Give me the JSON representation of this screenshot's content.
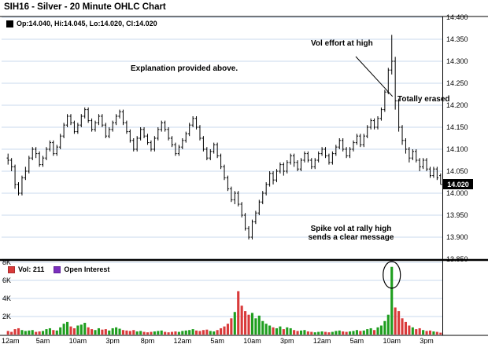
{
  "header": {
    "title": "SIH16 - Silver - 20 Minute OHLC Chart"
  },
  "ohlc_legend": {
    "swatch_color": "#000000",
    "label": "Op:14.040, Hi:14.045, Lo:14.020, Cl:14.020"
  },
  "volume_legend": {
    "vol_color": "#d93a3a",
    "vol_label": "Vol: 211",
    "oi_color": "#7b2fbe",
    "oi_label": "Open Interest"
  },
  "annotations": {
    "explanation": "Explanation provided above.",
    "vol_effort": "Vol effort at high",
    "totally_erased": "Totally erased",
    "spike_line1": "Spike vol at rally high",
    "spike_line2": "sends a clear message"
  },
  "price_tag": {
    "value": "14.020"
  },
  "chart_data": {
    "type": "ohlc+volume-bar",
    "title": "SIH16 - Silver - 20 Minute OHLC Chart",
    "legend_position": "top-left",
    "grid": true,
    "price_axis": {
      "side": "right",
      "min": 13.85,
      "max": 14.4,
      "tick_labels": [
        "14.400",
        "14.350",
        "14.300",
        "14.250",
        "14.200",
        "14.150",
        "14.100",
        "14.050",
        "14.000",
        "13.950",
        "13.900",
        "13.850"
      ],
      "last_price_label": "14.020"
    },
    "volume_axis": {
      "side": "left",
      "min": 0,
      "max": 8000,
      "tick_labels": [
        "8K",
        "6K",
        "4K",
        "2K"
      ]
    },
    "time_labels": [
      "12am",
      "5am",
      "10am",
      "3pm",
      "8pm",
      "12am",
      "5am",
      "10am",
      "3pm",
      "12am",
      "5am",
      "10am",
      "3pm"
    ],
    "bars_per_label": 10,
    "colors": {
      "bar": "#000000",
      "grid": "#c9d8ec",
      "vol_up": "#1f9e1f",
      "vol_down": "#d93a3a",
      "open_interest": "#7b2fbe",
      "axis": "#000000"
    },
    "bars_format": [
      "open",
      "high",
      "low",
      "close",
      "volume"
    ],
    "bars": [
      [
        14.08,
        14.09,
        14.065,
        14.075,
        400
      ],
      [
        14.075,
        14.08,
        14.05,
        14.06,
        300
      ],
      [
        14.06,
        14.065,
        14.01,
        14.02,
        600
      ],
      [
        14.02,
        14.025,
        13.995,
        14.0,
        700
      ],
      [
        14.0,
        14.04,
        13.995,
        14.035,
        500
      ],
      [
        14.035,
        14.06,
        14.03,
        14.05,
        400
      ],
      [
        14.05,
        14.085,
        14.045,
        14.08,
        450
      ],
      [
        14.08,
        14.105,
        14.075,
        14.1,
        500
      ],
      [
        14.1,
        14.105,
        14.08,
        14.09,
        300
      ],
      [
        14.09,
        14.095,
        14.06,
        14.065,
        350
      ],
      [
        14.065,
        14.085,
        14.06,
        14.08,
        400
      ],
      [
        14.08,
        14.105,
        14.075,
        14.1,
        600
      ],
      [
        14.1,
        14.12,
        14.095,
        14.115,
        700
      ],
      [
        14.115,
        14.12,
        14.085,
        14.09,
        500
      ],
      [
        14.09,
        14.11,
        14.085,
        14.105,
        450
      ],
      [
        14.105,
        14.135,
        14.1,
        14.13,
        800
      ],
      [
        14.13,
        14.16,
        14.125,
        14.155,
        1200
      ],
      [
        14.155,
        14.18,
        14.15,
        14.175,
        1400
      ],
      [
        14.175,
        14.18,
        14.155,
        14.16,
        900
      ],
      [
        14.16,
        14.165,
        14.135,
        14.14,
        700
      ],
      [
        14.14,
        14.16,
        14.135,
        14.155,
        1000
      ],
      [
        14.155,
        14.18,
        14.15,
        14.175,
        1100
      ],
      [
        14.175,
        14.195,
        14.17,
        14.19,
        1300
      ],
      [
        14.19,
        14.195,
        14.16,
        14.165,
        800
      ],
      [
        14.165,
        14.17,
        14.14,
        14.145,
        600
      ],
      [
        14.145,
        14.165,
        14.14,
        14.16,
        500
      ],
      [
        14.16,
        14.18,
        14.155,
        14.175,
        700
      ],
      [
        14.175,
        14.18,
        14.15,
        14.155,
        550
      ],
      [
        14.155,
        14.16,
        14.125,
        14.13,
        600
      ],
      [
        14.13,
        14.15,
        14.125,
        14.145,
        450
      ],
      [
        14.145,
        14.165,
        14.14,
        14.16,
        700
      ],
      [
        14.16,
        14.18,
        14.155,
        14.175,
        800
      ],
      [
        14.175,
        14.19,
        14.17,
        14.185,
        650
      ],
      [
        14.185,
        14.19,
        14.155,
        14.16,
        500
      ],
      [
        14.16,
        14.165,
        14.135,
        14.14,
        450
      ],
      [
        14.14,
        14.145,
        14.115,
        14.12,
        400
      ],
      [
        14.12,
        14.125,
        14.095,
        14.1,
        500
      ],
      [
        14.1,
        14.13,
        14.095,
        14.125,
        350
      ],
      [
        14.125,
        14.15,
        14.12,
        14.145,
        400
      ],
      [
        14.145,
        14.15,
        14.125,
        14.13,
        300
      ],
      [
        14.13,
        14.135,
        14.11,
        14.115,
        250
      ],
      [
        14.115,
        14.12,
        14.095,
        14.1,
        300
      ],
      [
        14.1,
        14.13,
        14.095,
        14.125,
        350
      ],
      [
        14.125,
        14.15,
        14.12,
        14.145,
        400
      ],
      [
        14.145,
        14.165,
        14.14,
        14.16,
        450
      ],
      [
        14.16,
        14.165,
        14.14,
        14.145,
        300
      ],
      [
        14.145,
        14.15,
        14.12,
        14.125,
        250
      ],
      [
        14.125,
        14.13,
        14.105,
        14.11,
        300
      ],
      [
        14.11,
        14.115,
        14.085,
        14.09,
        350
      ],
      [
        14.09,
        14.11,
        14.085,
        14.105,
        300
      ],
      [
        14.105,
        14.125,
        14.1,
        14.12,
        400
      ],
      [
        14.12,
        14.14,
        14.115,
        14.135,
        450
      ],
      [
        14.135,
        14.16,
        14.13,
        14.155,
        500
      ],
      [
        14.155,
        14.175,
        14.15,
        14.17,
        600
      ],
      [
        14.17,
        14.175,
        14.145,
        14.15,
        450
      ],
      [
        14.15,
        14.155,
        14.12,
        14.125,
        400
      ],
      [
        14.125,
        14.13,
        14.095,
        14.1,
        500
      ],
      [
        14.1,
        14.105,
        14.075,
        14.08,
        550
      ],
      [
        14.08,
        14.1,
        14.075,
        14.095,
        400
      ],
      [
        14.095,
        14.115,
        14.09,
        14.11,
        350
      ],
      [
        14.11,
        14.115,
        14.08,
        14.085,
        500
      ],
      [
        14.085,
        14.09,
        14.055,
        14.06,
        700
      ],
      [
        14.06,
        14.065,
        14.03,
        14.035,
        900
      ],
      [
        14.035,
        14.04,
        14.005,
        14.01,
        1200
      ],
      [
        14.01,
        14.015,
        13.98,
        13.985,
        1800
      ],
      [
        13.985,
        14.005,
        13.975,
        14.0,
        2500
      ],
      [
        14.0,
        14.005,
        13.97,
        13.975,
        4800
      ],
      [
        13.975,
        13.98,
        13.945,
        13.95,
        3200
      ],
      [
        13.95,
        13.955,
        13.915,
        13.92,
        2600
      ],
      [
        13.92,
        13.925,
        13.895,
        13.9,
        2200
      ],
      [
        13.9,
        13.94,
        13.895,
        13.935,
        2400
      ],
      [
        13.935,
        13.96,
        13.93,
        13.955,
        1800
      ],
      [
        13.955,
        13.985,
        13.95,
        13.98,
        2100
      ],
      [
        13.98,
        14.005,
        13.975,
        14.0,
        1500
      ],
      [
        14.0,
        14.025,
        13.995,
        14.02,
        1200
      ],
      [
        14.02,
        14.05,
        14.015,
        14.045,
        1000
      ],
      [
        14.045,
        14.05,
        14.02,
        14.03,
        800
      ],
      [
        14.03,
        14.055,
        14.025,
        14.05,
        700
      ],
      [
        14.05,
        14.07,
        14.045,
        14.065,
        900
      ],
      [
        14.065,
        14.07,
        14.04,
        14.05,
        600
      ],
      [
        14.05,
        14.075,
        14.045,
        14.07,
        800
      ],
      [
        14.07,
        14.09,
        14.065,
        14.085,
        700
      ],
      [
        14.085,
        14.09,
        14.06,
        14.07,
        500
      ],
      [
        14.07,
        14.075,
        14.05,
        14.055,
        400
      ],
      [
        14.055,
        14.08,
        14.05,
        14.075,
        450
      ],
      [
        14.075,
        14.095,
        14.07,
        14.09,
        500
      ],
      [
        14.09,
        14.095,
        14.07,
        14.075,
        350
      ],
      [
        14.075,
        14.08,
        14.055,
        14.06,
        300
      ],
      [
        14.06,
        14.08,
        14.055,
        14.075,
        250
      ],
      [
        14.075,
        14.095,
        14.07,
        14.09,
        300
      ],
      [
        14.09,
        14.105,
        14.085,
        14.1,
        350
      ],
      [
        14.1,
        14.105,
        14.08,
        14.085,
        300
      ],
      [
        14.085,
        14.09,
        14.065,
        14.07,
        250
      ],
      [
        14.07,
        14.095,
        14.065,
        14.09,
        300
      ],
      [
        14.09,
        14.11,
        14.085,
        14.105,
        400
      ],
      [
        14.105,
        14.125,
        14.1,
        14.12,
        450
      ],
      [
        14.12,
        14.125,
        14.095,
        14.1,
        350
      ],
      [
        14.1,
        14.105,
        14.08,
        14.085,
        300
      ],
      [
        14.085,
        14.105,
        14.08,
        14.1,
        350
      ],
      [
        14.1,
        14.12,
        14.095,
        14.115,
        400
      ],
      [
        14.115,
        14.135,
        14.11,
        14.13,
        500
      ],
      [
        14.13,
        14.135,
        14.105,
        14.11,
        400
      ],
      [
        14.11,
        14.135,
        14.105,
        14.13,
        450
      ],
      [
        14.13,
        14.155,
        14.125,
        14.15,
        600
      ],
      [
        14.15,
        14.17,
        14.145,
        14.165,
        700
      ],
      [
        14.165,
        14.17,
        14.145,
        14.15,
        500
      ],
      [
        14.15,
        14.175,
        14.145,
        14.17,
        800
      ],
      [
        14.17,
        14.195,
        14.165,
        14.19,
        1000
      ],
      [
        14.19,
        14.235,
        14.185,
        14.23,
        1500
      ],
      [
        14.23,
        14.285,
        14.225,
        14.28,
        2200
      ],
      [
        14.28,
        14.36,
        14.27,
        14.3,
        7500
      ],
      [
        14.3,
        14.31,
        14.19,
        14.21,
        3000
      ],
      [
        14.21,
        14.215,
        14.14,
        14.15,
        2600
      ],
      [
        14.15,
        14.155,
        14.11,
        14.12,
        1800
      ],
      [
        14.12,
        14.125,
        14.09,
        14.1,
        1400
      ],
      [
        14.1,
        14.105,
        14.07,
        14.08,
        1000
      ],
      [
        14.08,
        14.1,
        14.075,
        14.095,
        800
      ],
      [
        14.095,
        14.1,
        14.07,
        14.075,
        600
      ],
      [
        14.075,
        14.08,
        14.05,
        14.06,
        700
      ],
      [
        14.06,
        14.08,
        14.055,
        14.075,
        500
      ],
      [
        14.075,
        14.08,
        14.05,
        14.055,
        400
      ],
      [
        14.055,
        14.06,
        14.035,
        14.04,
        450
      ],
      [
        14.04,
        14.06,
        14.035,
        14.055,
        350
      ],
      [
        14.055,
        14.06,
        14.03,
        14.035,
        300
      ],
      [
        14.04,
        14.045,
        14.02,
        14.02,
        211
      ]
    ]
  }
}
